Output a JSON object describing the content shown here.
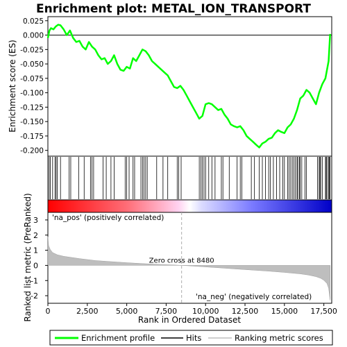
{
  "chart_data": {
    "type": "line",
    "title": "Enrichment plot: METAL_ION_TRANSPORT",
    "xlabel": "Rank in Ordered Dataset",
    "xlim": [
      0,
      18000
    ],
    "x_ticks": [
      0,
      2500,
      5000,
      7500,
      10000,
      12500,
      15000,
      17500
    ],
    "x_tick_labels": [
      "0",
      "2,500",
      "5,000",
      "7,500",
      "10,000",
      "12,500",
      "15,000",
      "17,500"
    ],
    "colors": {
      "enrichment": "#00ff00",
      "hits": "#000000",
      "metric_fill": "#bebebe",
      "pos_label": "#ff0000",
      "neg_label": "#0000ff",
      "zero_cross_line": "#aaaaaa"
    },
    "enrichment_panel": {
      "ylabel": "Enrichment score (ES)",
      "ylim": [
        -0.21,
        0.032
      ],
      "y_ticks": [
        0.025,
        0.0,
        -0.025,
        -0.05,
        -0.075,
        -0.1,
        -0.125,
        -0.15,
        -0.175,
        -0.2
      ],
      "y_tick_labels": [
        "0.025",
        "0.000",
        "-0.025",
        "-0.050",
        "-0.075",
        "-0.100",
        "-0.125",
        "-0.150",
        "-0.175",
        "-0.200"
      ],
      "series": [
        {
          "name": "Enrichment profile",
          "x": [
            0,
            100,
            200,
            350,
            500,
            650,
            800,
            1000,
            1200,
            1400,
            1600,
            1800,
            2000,
            2200,
            2400,
            2600,
            2800,
            3000,
            3200,
            3400,
            3600,
            3800,
            4000,
            4200,
            4400,
            4600,
            4800,
            5000,
            5200,
            5400,
            5600,
            5800,
            6000,
            6200,
            6400,
            6600,
            6800,
            7000,
            7200,
            7400,
            7600,
            7800,
            8000,
            8200,
            8400,
            8600,
            8800,
            9000,
            9200,
            9400,
            9600,
            9800,
            10000,
            10200,
            10400,
            10600,
            10800,
            11000,
            11200,
            11400,
            11600,
            11800,
            12000,
            12200,
            12400,
            12600,
            12800,
            13000,
            13200,
            13400,
            13600,
            13800,
            14000,
            14200,
            14400,
            14600,
            14800,
            15000,
            15200,
            15400,
            15600,
            15800,
            16000,
            16200,
            16400,
            16600,
            16800,
            17000,
            17200,
            17400,
            17600,
            17800,
            17900
          ],
          "y": [
            -0.005,
            0.008,
            0.012,
            0.01,
            0.015,
            0.018,
            0.017,
            0.01,
            0.0,
            0.008,
            -0.005,
            -0.012,
            -0.01,
            -0.02,
            -0.025,
            -0.012,
            -0.02,
            -0.025,
            -0.035,
            -0.042,
            -0.04,
            -0.05,
            -0.045,
            -0.035,
            -0.05,
            -0.06,
            -0.062,
            -0.055,
            -0.058,
            -0.04,
            -0.045,
            -0.035,
            -0.025,
            -0.028,
            -0.035,
            -0.045,
            -0.05,
            -0.055,
            -0.06,
            -0.065,
            -0.07,
            -0.08,
            -0.09,
            -0.092,
            -0.088,
            -0.095,
            -0.105,
            -0.115,
            -0.125,
            -0.135,
            -0.145,
            -0.14,
            -0.12,
            -0.118,
            -0.12,
            -0.125,
            -0.13,
            -0.128,
            -0.138,
            -0.145,
            -0.155,
            -0.158,
            -0.16,
            -0.158,
            -0.165,
            -0.175,
            -0.18,
            -0.185,
            -0.19,
            -0.195,
            -0.188,
            -0.185,
            -0.18,
            -0.178,
            -0.17,
            -0.165,
            -0.168,
            -0.17,
            -0.16,
            -0.155,
            -0.145,
            -0.13,
            -0.11,
            -0.105,
            -0.095,
            -0.1,
            -0.11,
            -0.12,
            -0.1,
            -0.085,
            -0.075,
            -0.045,
            0.002
          ]
        }
      ]
    },
    "hits": [
      80,
      150,
      300,
      450,
      520,
      600,
      800,
      1350,
      1450,
      1950,
      2300,
      2700,
      2800,
      2900,
      3500,
      3700,
      4000,
      4200,
      4900,
      5000,
      5150,
      5400,
      5500,
      5900,
      6000,
      6100,
      6200,
      6300,
      6900,
      7300,
      7600,
      8200,
      8300,
      8450,
      9600,
      9700,
      9800,
      9900,
      10000,
      10200,
      10400,
      10600,
      11000,
      11100,
      11500,
      12000,
      12200,
      12300,
      12900,
      13100,
      13400,
      13600,
      13800,
      14000,
      14100,
      14300,
      14500,
      14700,
      14900,
      15000,
      15200,
      15300,
      15400,
      15500,
      15600,
      15700,
      15800,
      15850,
      15950,
      16000,
      16100,
      16300,
      16400,
      17100,
      17200,
      17250,
      17300,
      17400,
      17600,
      17650,
      17700,
      17800,
      17850,
      17900
    ],
    "metric_panel": {
      "ylabel": "Ranked list metric (PreRanked)",
      "ylim": [
        -2.5,
        3.5
      ],
      "y_ticks": [
        3,
        2,
        1,
        0,
        -1,
        -2
      ],
      "y_tick_labels": [
        "3",
        "2",
        "1",
        "0",
        "-1",
        "-2"
      ],
      "x": [
        0,
        50,
        150,
        300,
        600,
        1000,
        2000,
        3000,
        4000,
        5000,
        6000,
        7000,
        8000,
        8480,
        9000,
        10000,
        11000,
        12000,
        13000,
        14000,
        15000,
        16000,
        16500,
        17000,
        17300,
        17500,
        17700,
        17800,
        17850,
        17900
      ],
      "values": [
        1.9,
        1.3,
        1.05,
        0.85,
        0.7,
        0.6,
        0.45,
        0.32,
        0.25,
        0.18,
        0.12,
        0.07,
        0.03,
        0.0,
        -0.03,
        -0.1,
        -0.17,
        -0.24,
        -0.31,
        -0.38,
        -0.46,
        -0.56,
        -0.63,
        -0.74,
        -0.85,
        -0.98,
        -1.2,
        -1.5,
        -1.9,
        -2.3
      ],
      "zero_cross": 8480,
      "zero_cross_label": "Zero cross at 8480",
      "pos_label": "'na_pos' (positively correlated)",
      "neg_label": "'na_neg' (negatively correlated)"
    },
    "legend": {
      "placement": "bottom",
      "entries": [
        "Enrichment profile",
        "Hits",
        "Ranking metric scores"
      ]
    }
  }
}
